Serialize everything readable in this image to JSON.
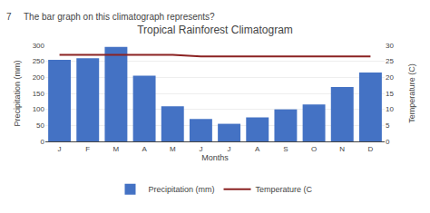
{
  "chart_data": {
    "type": "bar",
    "title": "Tropical Rainforest Climatogram",
    "subtitle": "The bar graph on this climatograph represents?",
    "annotations": [
      "7"
    ],
    "xlabel": "Months",
    "ylabel": "Precipitation (mm)",
    "y2label": "Temperature (C)",
    "categories": [
      "J",
      "F",
      "M",
      "A",
      "M",
      "J",
      "J",
      "A",
      "S",
      "O",
      "N",
      "D"
    ],
    "series": [
      {
        "name": "Precipitation (mm)",
        "type": "bar",
        "color": "#4472C4",
        "values": [
          255,
          260,
          295,
          205,
          110,
          70,
          55,
          75,
          100,
          115,
          170,
          215
        ]
      },
      {
        "name": "Temperature (C",
        "type": "line",
        "color": "#8B2222",
        "axis": "y2",
        "values": [
          27,
          27,
          27,
          27,
          27,
          26.5,
          26.5,
          26.5,
          26.5,
          26.5,
          26.5,
          26.5
        ]
      }
    ],
    "ylim": [
      0,
      300
    ],
    "yticks": [
      0,
      50,
      100,
      150,
      200,
      250,
      300
    ],
    "y2lim": [
      0,
      30
    ],
    "y2ticks": [
      0,
      5,
      10,
      15,
      20,
      25,
      30
    ],
    "grid": true,
    "legend": "bottom"
  }
}
